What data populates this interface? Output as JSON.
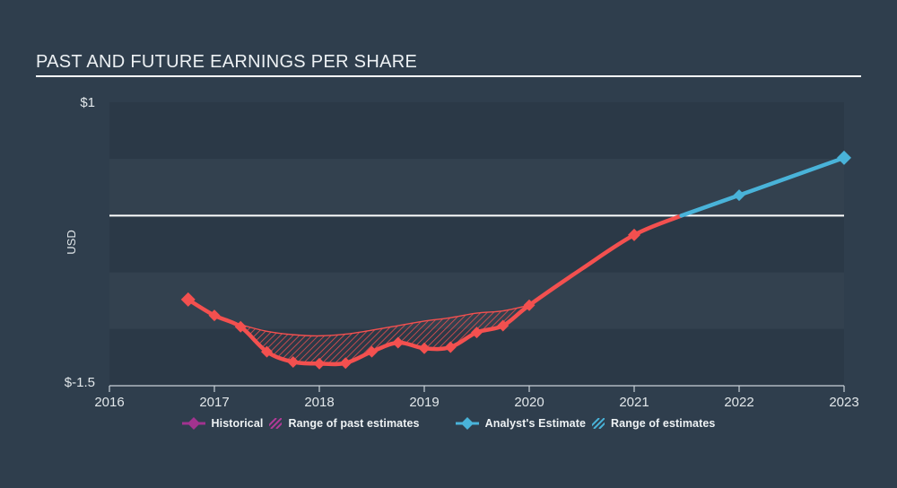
{
  "page": {
    "background": "#2f3e4d"
  },
  "header": {
    "title": "PAST AND FUTURE EARNINGS PER SHARE"
  },
  "axis": {
    "y_top_label": "$1",
    "y_bottom_label": "$-1.5",
    "y_unit": "USD",
    "x_tick_labels": [
      "2016",
      "2017",
      "2018",
      "2019",
      "2020",
      "2021",
      "2022",
      "2023"
    ]
  },
  "legend": [
    {
      "label": "Historical",
      "marker_color": "#a2338f",
      "swatch_label": "Range of past estimates",
      "swatch_color": "#b23a98"
    },
    {
      "label": "Analyst's Estimate",
      "marker_color": "#49b3d9",
      "swatch_label": "Range of estimates",
      "swatch_color": "#49b3d9"
    }
  ],
  "chart_data": {
    "type": "line",
    "title": "PAST AND FUTURE EARNINGS PER SHARE",
    "xlabel": "",
    "ylabel": "USD",
    "ylim": [
      -1.5,
      1
    ],
    "xlim": [
      2016,
      2023
    ],
    "xticks": [
      2016,
      2017,
      2018,
      2019,
      2020,
      2021,
      2022,
      2023
    ],
    "zero_line": 0,
    "grid": "horizontal-bands",
    "colors": {
      "band_dark": "#2b3947",
      "band_light": "#33414f",
      "zero_line": "#ffffff",
      "axis_line": "#c9d2d8",
      "tick_text": "#e2e7ea",
      "historical_line": "#f3504f",
      "estimate_line": "#49b3d9"
    },
    "series": [
      {
        "name": "Historical",
        "type": "line",
        "color": "#f3504f",
        "x": [
          2016.75,
          2017.0,
          2017.25,
          2017.5,
          2017.75,
          2018.0,
          2018.25,
          2018.5,
          2018.75,
          2019.0,
          2019.25,
          2019.5,
          2019.75,
          2020.0
        ],
        "y": [
          -0.74,
          -0.88,
          -0.98,
          -1.2,
          -1.29,
          -1.305,
          -1.3,
          -1.2,
          -1.12,
          -1.17,
          -1.16,
          -1.03,
          -0.97,
          -0.79
        ],
        "extension_x": [
          2020.5,
          2021.0,
          2021.45
        ],
        "extension_y": [
          -0.47,
          -0.17,
          0.0
        ],
        "extension_marker_x": [
          2021.0
        ],
        "extension_marker_y": [
          -0.17
        ]
      },
      {
        "name": "Analyst's Estimate",
        "type": "line",
        "color": "#49b3d9",
        "x": [
          2021.45,
          2022.0,
          2023.0
        ],
        "y": [
          0.0,
          0.18,
          0.51
        ],
        "marker_x": [
          2022.0,
          2023.0
        ],
        "marker_y": [
          0.18,
          0.51
        ]
      },
      {
        "name": "Range of past estimates",
        "type": "band",
        "hatch_color": "#f3504f",
        "x": [
          2017.0,
          2017.25,
          2017.5,
          2017.75,
          2018.0,
          2018.25,
          2018.5,
          2018.75,
          2019.0,
          2019.25,
          2019.5,
          2019.75,
          2020.0
        ],
        "upper": [
          -0.88,
          -0.96,
          -1.02,
          -1.05,
          -1.06,
          -1.045,
          -1.01,
          -0.97,
          -0.93,
          -0.9,
          -0.86,
          -0.84,
          -0.79
        ],
        "lower": [
          -0.88,
          -0.98,
          -1.2,
          -1.29,
          -1.305,
          -1.3,
          -1.2,
          -1.12,
          -1.17,
          -1.16,
          -1.03,
          -0.97,
          -0.79
        ]
      },
      {
        "name": "Range of estimates",
        "type": "band",
        "hatch_color": "#49b3d9",
        "x": [
          2021.45,
          2023.0
        ],
        "upper": [
          0.0,
          0.51
        ],
        "lower": [
          0.0,
          0.51
        ]
      }
    ]
  }
}
